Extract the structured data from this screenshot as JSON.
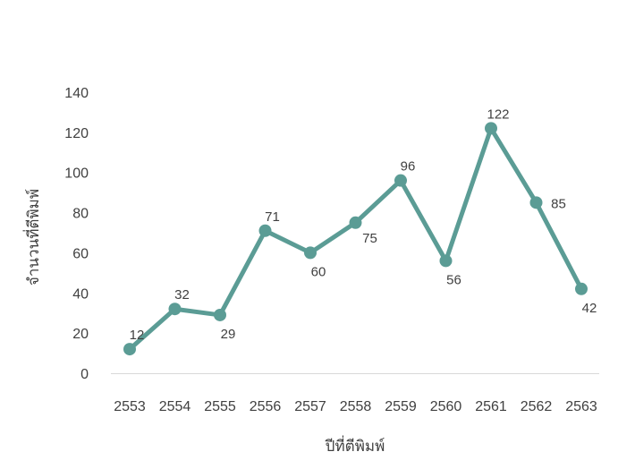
{
  "chart": {
    "accent_color": "#5b9c95",
    "axis_line_color": "#d9d9d9",
    "text_color": "#404040"
  },
  "chart_data": {
    "type": "line",
    "title": "",
    "categories": [
      "2553",
      "2554",
      "2555",
      "2556",
      "2557",
      "2558",
      "2559",
      "2560",
      "2561",
      "2562",
      "2563"
    ],
    "series": [
      {
        "name": "",
        "values": [
          12,
          32,
          29,
          71,
          60,
          75,
          96,
          56,
          122,
          85,
          42
        ]
      }
    ],
    "data_labels": [
      12,
      32,
      29,
      71,
      60,
      75,
      96,
      56,
      122,
      85,
      42
    ],
    "label_positions": [
      "above",
      "above",
      "below",
      "above",
      "below",
      "below-right",
      "above",
      "below",
      "above",
      "right",
      "below"
    ],
    "xlabel": "ปีที่ตีพิมพ์",
    "ylabel": "จำนวนที่ตีพิมพ์",
    "ylim": [
      0,
      140
    ],
    "ytick_step": 20,
    "yticks": [
      "0",
      "20",
      "40",
      "60",
      "80",
      "100",
      "120",
      "140"
    ],
    "grid": false,
    "legend": "none",
    "marker": "circle"
  }
}
